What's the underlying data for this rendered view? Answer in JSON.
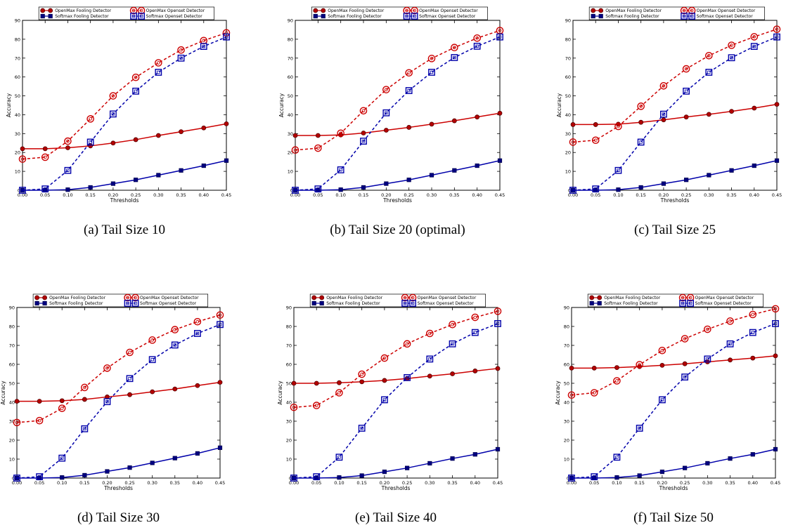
{
  "captions": [
    "(a) Tail Size 10",
    "(b) Tail Size 20 (optimal)",
    "(c) Tail Size 25",
    "(d) Tail Size 30",
    "(e) Tail Size 40",
    "(f) Tail Size 50"
  ],
  "colors": {
    "openmax": "#cc0000",
    "softmax": "#0000aa"
  },
  "chart_data": [
    {
      "type": "line",
      "title": "",
      "xlabel": "Thresholds",
      "ylabel": "Accuracy",
      "x": [
        0.0,
        0.05,
        0.1,
        0.15,
        0.2,
        0.25,
        0.3,
        0.35,
        0.4,
        0.45
      ],
      "x_tick_labels": [
        "0.00",
        "0.05",
        "0.10",
        "0.15",
        "0.20",
        "0.25",
        "0.30",
        "0.35",
        "0.40",
        "0.45"
      ],
      "xlim": [
        0,
        0.45
      ],
      "ylim": [
        0,
        90
      ],
      "y_ticks": [
        0,
        10,
        20,
        30,
        40,
        50,
        60,
        70,
        80,
        90
      ],
      "legend": "top-center",
      "series": [
        {
          "name": "OpenMax Fooling Detector",
          "values": [
            22,
            22,
            22.5,
            23.5,
            25,
            26.8,
            29,
            31,
            33,
            35.2
          ]
        },
        {
          "name": "Softmax Fooling Detector",
          "values": [
            0,
            0,
            0.3,
            1.5,
            3.5,
            5.5,
            8,
            10.5,
            13,
            15.7
          ]
        },
        {
          "name": "OpenMax Openset Detector",
          "values": [
            16.5,
            17.5,
            26,
            37.8,
            50,
            59.8,
            67.5,
            74.3,
            79.3,
            83.4
          ]
        },
        {
          "name": "Softmax Openset Detector",
          "values": [
            0,
            0.7,
            10.5,
            25.5,
            40.4,
            52.5,
            62.5,
            70,
            76.2,
            81.2
          ]
        }
      ]
    },
    {
      "type": "line",
      "title": "",
      "xlabel": "Thresholds",
      "ylabel": "Accuracy",
      "x": [
        0.0,
        0.05,
        0.1,
        0.15,
        0.2,
        0.25,
        0.3,
        0.35,
        0.4,
        0.45
      ],
      "x_tick_labels": [
        "0.00",
        "0.05",
        "0.10",
        "0.15",
        "0.20",
        "0.25",
        "0.30",
        "0.35",
        "0.40",
        "0.45"
      ],
      "xlim": [
        0,
        0.45
      ],
      "ylim": [
        0,
        90
      ],
      "y_ticks": [
        0,
        10,
        20,
        30,
        40,
        50,
        60,
        70,
        80,
        90
      ],
      "legend": "top-center",
      "series": [
        {
          "name": "OpenMax Fooling Detector",
          "values": [
            29,
            29,
            29.3,
            30.3,
            31.8,
            33.3,
            35,
            36.8,
            38.8,
            40.8
          ]
        },
        {
          "name": "Softmax Fooling Detector",
          "values": [
            0,
            0,
            0.3,
            1.5,
            3.5,
            5.5,
            8,
            10.5,
            13,
            15.7
          ]
        },
        {
          "name": "OpenMax Openset Detector",
          "values": [
            21.3,
            22.3,
            30.2,
            42.1,
            53.3,
            62.2,
            69.8,
            75.6,
            80.6,
            84.6
          ]
        },
        {
          "name": "Softmax Openset Detector",
          "values": [
            0,
            0.7,
            10.8,
            26,
            41,
            52.8,
            62.5,
            70.3,
            76.3,
            81.2
          ]
        }
      ]
    },
    {
      "type": "line",
      "title": "",
      "xlabel": "Thresholds",
      "ylabel": "Accuracy",
      "x": [
        0.0,
        0.05,
        0.1,
        0.15,
        0.2,
        0.25,
        0.3,
        0.35,
        0.4,
        0.45
      ],
      "x_tick_labels": [
        "0.00",
        "0.05",
        "0.10",
        "0.15",
        "0.20",
        "0.25",
        "0.30",
        "0.35",
        "0.40",
        "0.45"
      ],
      "xlim": [
        0,
        0.45
      ],
      "ylim": [
        0,
        90
      ],
      "y_ticks": [
        0,
        10,
        20,
        30,
        40,
        50,
        60,
        70,
        80,
        90
      ],
      "legend": "top-center",
      "series": [
        {
          "name": "OpenMax Fooling Detector",
          "values": [
            34.8,
            34.8,
            35,
            36,
            37.3,
            38.8,
            40.2,
            41.8,
            43.5,
            45.5
          ]
        },
        {
          "name": "Softmax Fooling Detector",
          "values": [
            0,
            0,
            0.3,
            1.5,
            3.5,
            5.5,
            8,
            10.5,
            13,
            15.7
          ]
        },
        {
          "name": "OpenMax Openset Detector",
          "values": [
            25.5,
            26.5,
            33.8,
            44.5,
            55.3,
            64.3,
            71.3,
            76.8,
            81.3,
            85.3
          ]
        },
        {
          "name": "Softmax Openset Detector",
          "values": [
            0,
            0.7,
            10.5,
            25.5,
            40.3,
            52.5,
            62.5,
            70.2,
            76.2,
            81.2
          ]
        }
      ]
    },
    {
      "type": "line",
      "title": "",
      "xlabel": "Thresholds",
      "ylabel": "Accuracy",
      "x": [
        0.0,
        0.05,
        0.1,
        0.15,
        0.2,
        0.25,
        0.3,
        0.35,
        0.4,
        0.45
      ],
      "x_tick_labels": [
        "0.00",
        "0.05",
        "0.10",
        "0.15",
        "0.20",
        "0.25",
        "0.30",
        "0.35",
        "0.40",
        "0.45"
      ],
      "xlim": [
        0,
        0.45
      ],
      "ylim": [
        0,
        90
      ],
      "y_ticks": [
        0,
        10,
        20,
        30,
        40,
        50,
        60,
        70,
        80,
        90
      ],
      "legend": "top-center",
      "series": [
        {
          "name": "OpenMax Fooling Detector",
          "values": [
            40.5,
            40.5,
            40.8,
            41.5,
            42.8,
            44,
            45.5,
            47,
            48.8,
            50.5
          ]
        },
        {
          "name": "Softmax Fooling Detector",
          "values": [
            0,
            0,
            0.3,
            1.5,
            3.5,
            5.5,
            8,
            10.5,
            13,
            16
          ]
        },
        {
          "name": "OpenMax Openset Detector",
          "values": [
            29.3,
            30.3,
            36.8,
            47.8,
            58,
            66.3,
            72.8,
            78.3,
            82.5,
            86
          ]
        },
        {
          "name": "Softmax Openset Detector",
          "values": [
            0,
            0.7,
            10.5,
            26,
            40.3,
            52.5,
            62.5,
            70.2,
            76.3,
            81
          ]
        }
      ]
    },
    {
      "type": "line",
      "title": "",
      "xlabel": "Thresholds",
      "ylabel": "Accuracy",
      "x": [
        0.0,
        0.05,
        0.1,
        0.15,
        0.2,
        0.25,
        0.3,
        0.35,
        0.4,
        0.45
      ],
      "x_tick_labels": [
        "0.00",
        "0.05",
        "0.10",
        "0.15",
        "0.20",
        "0.25",
        "0.30",
        "0.35",
        "0.40",
        "0.45"
      ],
      "xlim": [
        0,
        0.45
      ],
      "ylim": [
        0,
        90
      ],
      "y_ticks": [
        0,
        10,
        20,
        30,
        40,
        50,
        60,
        70,
        80,
        90
      ],
      "legend": "top-center",
      "series": [
        {
          "name": "OpenMax Fooling Detector",
          "values": [
            50,
            50,
            50.3,
            50.8,
            51.5,
            52.5,
            53.8,
            55,
            56.5,
            57.8
          ]
        },
        {
          "name": "Softmax Fooling Detector",
          "values": [
            0,
            0,
            0.3,
            1.3,
            3.3,
            5.3,
            7.8,
            10.3,
            12.5,
            15.2
          ]
        },
        {
          "name": "OpenMax Openset Detector",
          "values": [
            37.3,
            38.3,
            45,
            54.8,
            63.3,
            70.8,
            76.3,
            81,
            84.8,
            88
          ]
        },
        {
          "name": "Softmax Openset Detector",
          "values": [
            0,
            0.7,
            11,
            26.3,
            41.3,
            53,
            62.8,
            70.8,
            76.8,
            81.5
          ]
        }
      ]
    },
    {
      "type": "line",
      "title": "",
      "xlabel": "Thresholds",
      "ylabel": "Accuracy",
      "x": [
        0.0,
        0.05,
        0.1,
        0.15,
        0.2,
        0.25,
        0.3,
        0.35,
        0.4,
        0.45
      ],
      "x_tick_labels": [
        "0.00",
        "0.05",
        "0.10",
        "0.15",
        "0.20",
        "0.25",
        "0.30",
        "0.35",
        "0.40",
        "0.45"
      ],
      "xlim": [
        0,
        0.45
      ],
      "ylim": [
        0,
        90
      ],
      "y_ticks": [
        0,
        10,
        20,
        30,
        40,
        50,
        60,
        70,
        80,
        90
      ],
      "legend": "top-center",
      "series": [
        {
          "name": "OpenMax Fooling Detector",
          "values": [
            58,
            58,
            58.3,
            58.8,
            59.5,
            60.3,
            61.3,
            62.3,
            63.3,
            64.5
          ]
        },
        {
          "name": "Softmax Fooling Detector",
          "values": [
            0,
            0,
            0.3,
            1.3,
            3.3,
            5.3,
            7.8,
            10.3,
            12.5,
            15.2
          ]
        },
        {
          "name": "OpenMax Openset Detector",
          "values": [
            43.8,
            45,
            51.3,
            59.8,
            67.3,
            73.5,
            78.5,
            82.8,
            86.3,
            89.3
          ]
        },
        {
          "name": "Softmax Openset Detector",
          "values": [
            0,
            0.7,
            11,
            26.3,
            41.3,
            53.3,
            62.8,
            70.8,
            76.8,
            81.5
          ]
        }
      ]
    }
  ]
}
